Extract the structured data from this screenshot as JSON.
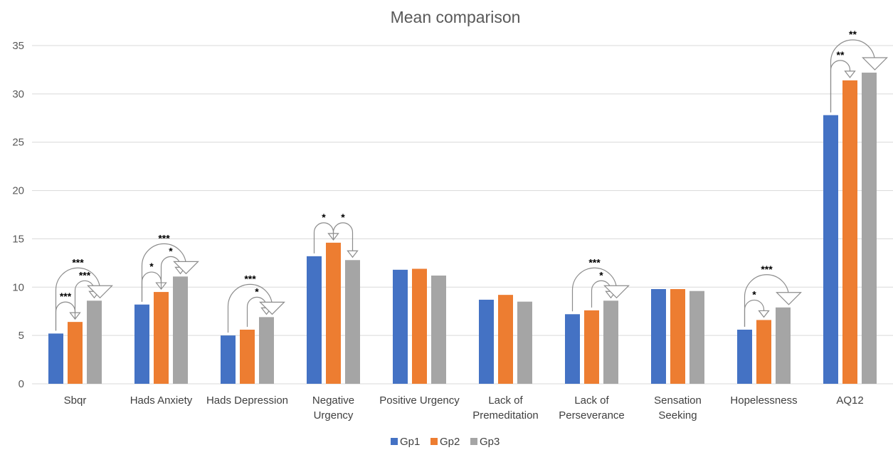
{
  "chart_data": {
    "type": "bar",
    "title": "Mean comparison",
    "categories": [
      [
        "Sbqr"
      ],
      [
        "Hads Anxiety"
      ],
      [
        "Hads Depression"
      ],
      [
        "Negative",
        "Urgency"
      ],
      [
        "Positive Urgency"
      ],
      [
        "Lack of",
        "Premeditation"
      ],
      [
        "Lack of",
        "Perseverance"
      ],
      [
        "Sensation",
        "Seeking"
      ],
      [
        "Hopelessness"
      ],
      [
        "AQ12"
      ]
    ],
    "series": [
      {
        "name": "Gp1",
        "color": "#4472c4",
        "values": [
          5.2,
          8.2,
          5.0,
          13.2,
          11.8,
          8.7,
          7.2,
          9.8,
          5.6,
          27.8
        ]
      },
      {
        "name": "Gp2",
        "color": "#ed7d31",
        "values": [
          6.4,
          9.5,
          5.6,
          14.6,
          11.9,
          9.2,
          7.6,
          9.8,
          6.6,
          31.4
        ]
      },
      {
        "name": "Gp3",
        "color": "#a5a5a5",
        "values": [
          8.6,
          11.1,
          6.9,
          12.8,
          11.2,
          8.5,
          8.6,
          9.6,
          7.9,
          32.2
        ]
      }
    ],
    "ylim": [
      0,
      35
    ],
    "yticks": [
      0,
      5,
      10,
      15,
      20,
      25,
      30,
      35
    ],
    "grid": true,
    "legend_position": "bottom",
    "significance": [
      {
        "cat": 0,
        "from": 0,
        "to": 1,
        "label": "***",
        "size": "small"
      },
      {
        "cat": 0,
        "from": 1,
        "to": 2,
        "label": "***",
        "size": "small"
      },
      {
        "cat": 0,
        "from": 0,
        "to": 2,
        "label": "***",
        "size": "large"
      },
      {
        "cat": 1,
        "from": 0,
        "to": 1,
        "label": "*",
        "size": "small"
      },
      {
        "cat": 1,
        "from": 1,
        "to": 2,
        "label": "*",
        "size": "small"
      },
      {
        "cat": 1,
        "from": 0,
        "to": 2,
        "label": "***",
        "size": "large"
      },
      {
        "cat": 2,
        "from": 1,
        "to": 2,
        "label": "*",
        "size": "small"
      },
      {
        "cat": 2,
        "from": 0,
        "to": 2,
        "label": "***",
        "size": "large"
      },
      {
        "cat": 3,
        "from": 0,
        "to": 1,
        "label": "*",
        "size": "small"
      },
      {
        "cat": 3,
        "from": 1,
        "to": 2,
        "label": "*",
        "size": "small"
      },
      {
        "cat": 6,
        "from": 1,
        "to": 2,
        "label": "*",
        "size": "small"
      },
      {
        "cat": 6,
        "from": 0,
        "to": 2,
        "label": "***",
        "size": "large"
      },
      {
        "cat": 8,
        "from": 0,
        "to": 1,
        "label": "*",
        "size": "small"
      },
      {
        "cat": 8,
        "from": 0,
        "to": 2,
        "label": "***",
        "size": "large"
      },
      {
        "cat": 9,
        "from": 0,
        "to": 1,
        "label": "**",
        "size": "small"
      },
      {
        "cat": 9,
        "from": 0,
        "to": 2,
        "label": "**",
        "size": "large"
      }
    ]
  }
}
